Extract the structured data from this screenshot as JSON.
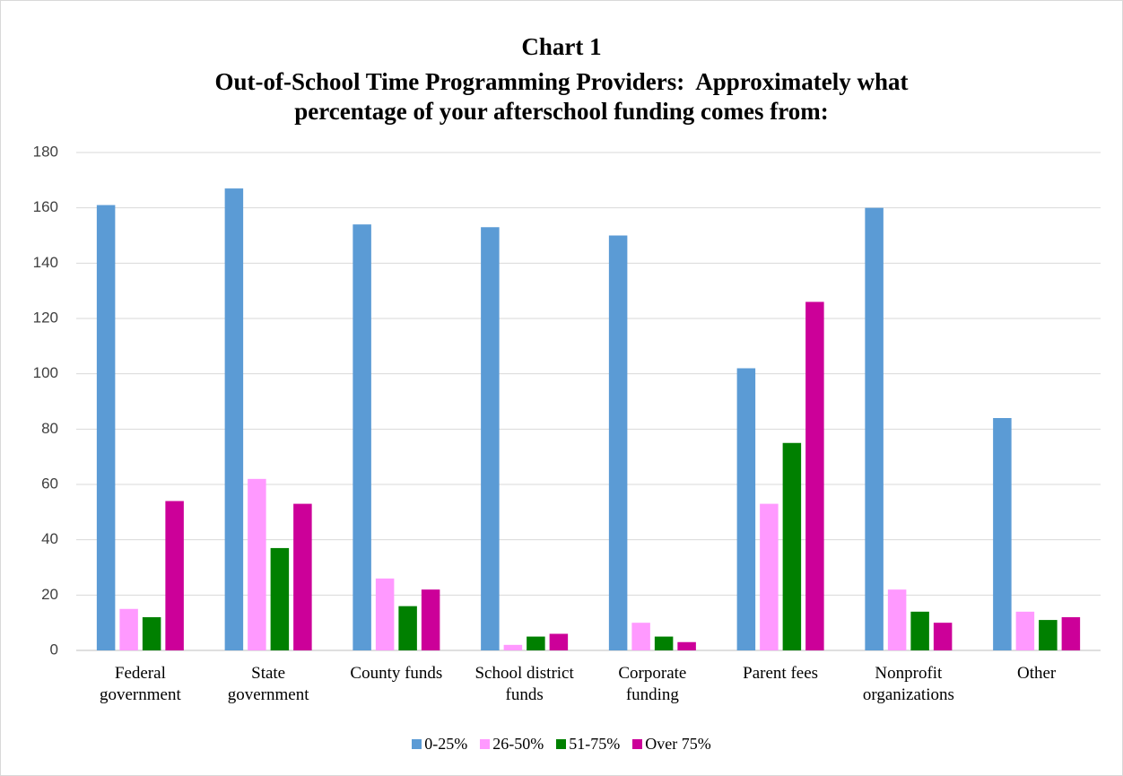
{
  "chart_data": {
    "type": "bar",
    "title": "Chart 1",
    "subtitle": "Out-of-School Time Programming Providers:  Approximately what percentage of your afterschool funding comes from:",
    "categories": [
      "Federal government",
      "State government",
      "County funds",
      "School district funds",
      "Corporate funding",
      "Parent fees",
      "Nonprofit organizations",
      "Other"
    ],
    "series": [
      {
        "name": "0-25%",
        "color": "#5b9bd5",
        "values": [
          161,
          167,
          154,
          153,
          150,
          102,
          160,
          84
        ]
      },
      {
        "name": "26-50%",
        "color": "#ff99ff",
        "values": [
          15,
          62,
          26,
          2,
          10,
          53,
          22,
          14
        ]
      },
      {
        "name": "51-75%",
        "color": "#008000",
        "values": [
          12,
          37,
          16,
          5,
          5,
          75,
          14,
          11
        ]
      },
      {
        "name": "Over 75%",
        "color": "#cc0099",
        "values": [
          54,
          53,
          22,
          6,
          3,
          126,
          10,
          12
        ]
      }
    ],
    "ylim": [
      0,
      180
    ],
    "yticks": [
      0,
      20,
      40,
      60,
      80,
      100,
      120,
      140,
      160,
      180
    ],
    "grid": true,
    "legend": "bottom"
  }
}
